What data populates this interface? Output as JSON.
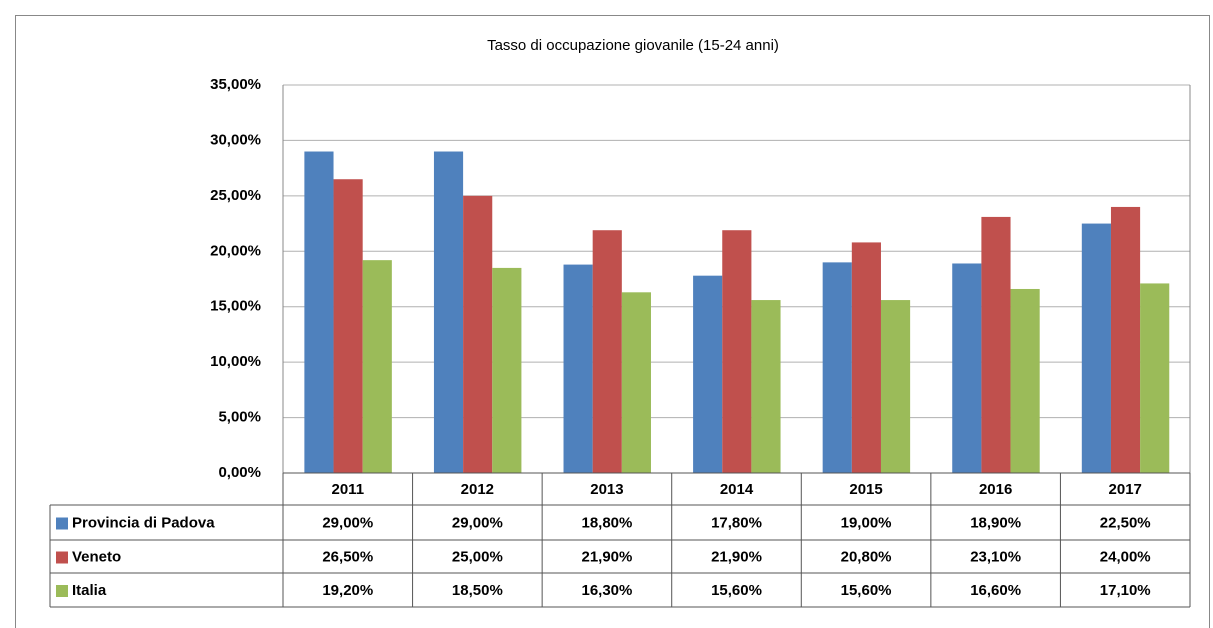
{
  "chart_data": {
    "type": "bar",
    "title": "Tasso di occupazione giovanile (15-24 anni)",
    "categories": [
      "2011",
      "2012",
      "2013",
      "2014",
      "2015",
      "2016",
      "2017"
    ],
    "series": [
      {
        "name": "Provincia di Padova",
        "color": "#4f81bd",
        "values": [
          29.0,
          29.0,
          18.8,
          17.8,
          19.0,
          18.9,
          22.5
        ],
        "value_labels": [
          "29,00%",
          "29,00%",
          "18,80%",
          "17,80%",
          "19,00%",
          "18,90%",
          "22,50%"
        ]
      },
      {
        "name": "Veneto",
        "color": "#c0504d",
        "values": [
          26.5,
          25.0,
          21.9,
          21.9,
          20.8,
          23.1,
          24.0
        ],
        "value_labels": [
          "26,50%",
          "25,00%",
          "21,90%",
          "21,90%",
          "20,80%",
          "23,10%",
          "24,00%"
        ]
      },
      {
        "name": "Italia",
        "color": "#9bbb59",
        "values": [
          19.2,
          18.5,
          16.3,
          15.6,
          15.6,
          16.6,
          17.1
        ],
        "value_labels": [
          "19,20%",
          "18,50%",
          "16,30%",
          "15,60%",
          "15,60%",
          "16,60%",
          "17,10%"
        ]
      }
    ],
    "ylim": [
      0,
      35
    ],
    "yticks": [
      {
        "value": 0,
        "label": "0,00%"
      },
      {
        "value": 5,
        "label": "5,00%"
      },
      {
        "value": 10,
        "label": "10,00%"
      },
      {
        "value": 15,
        "label": "15,00%"
      },
      {
        "value": 20,
        "label": "20,00%"
      },
      {
        "value": 25,
        "label": "25,00%"
      },
      {
        "value": 30,
        "label": "30,00%"
      },
      {
        "value": 35,
        "label": "35,00%"
      }
    ],
    "grid": true
  }
}
